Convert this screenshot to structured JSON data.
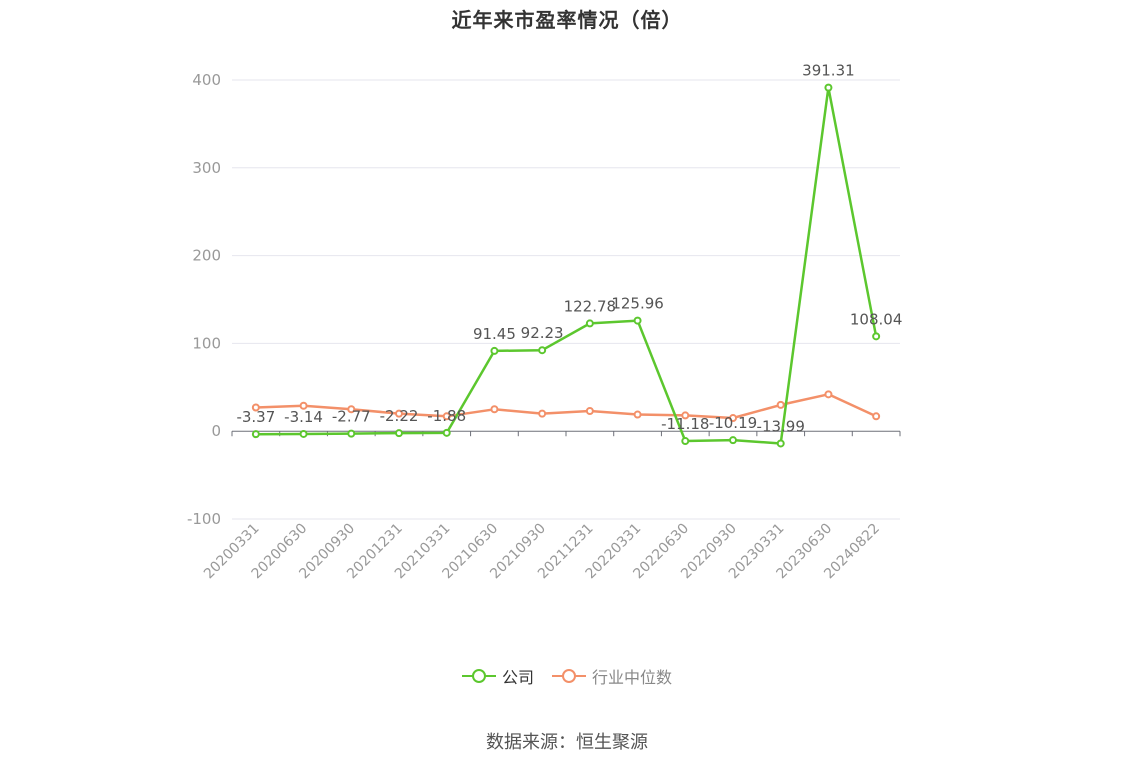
{
  "title": "近年来市盈率情况（倍）",
  "source": "数据来源：恒生聚源",
  "chart_data": {
    "type": "line",
    "categories": [
      "20200331",
      "20200630",
      "20200930",
      "20201231",
      "20210331",
      "20210630",
      "20210930",
      "20211231",
      "20220331",
      "20220630",
      "20220930",
      "20230331",
      "20230630",
      "20240822"
    ],
    "ylim": [
      -100,
      400
    ],
    "yticks": [
      -100,
      0,
      100,
      200,
      300,
      400
    ],
    "grid": true,
    "legend_position": "bottom",
    "series": [
      {
        "name": "公司",
        "color": "#5cc72e",
        "values": [
          -3.37,
          -3.14,
          -2.77,
          -2.22,
          -1.88,
          91.45,
          92.23,
          122.78,
          125.96,
          -11.18,
          -10.19,
          -13.99,
          391.31,
          108.04
        ],
        "labels": [
          "-3.37",
          "-3.14",
          "-2.77",
          "-2.22",
          "-1.88",
          "91.45",
          "92.23",
          "122.78",
          "125.96",
          "-11.18",
          "-10.19",
          "-13.99",
          "391.31",
          "108.04"
        ]
      },
      {
        "name": "行业中位数",
        "color": "#f39069",
        "values": [
          27,
          29,
          25,
          20,
          17,
          25,
          20,
          23,
          19,
          18,
          15,
          30,
          42,
          17
        ]
      }
    ]
  }
}
